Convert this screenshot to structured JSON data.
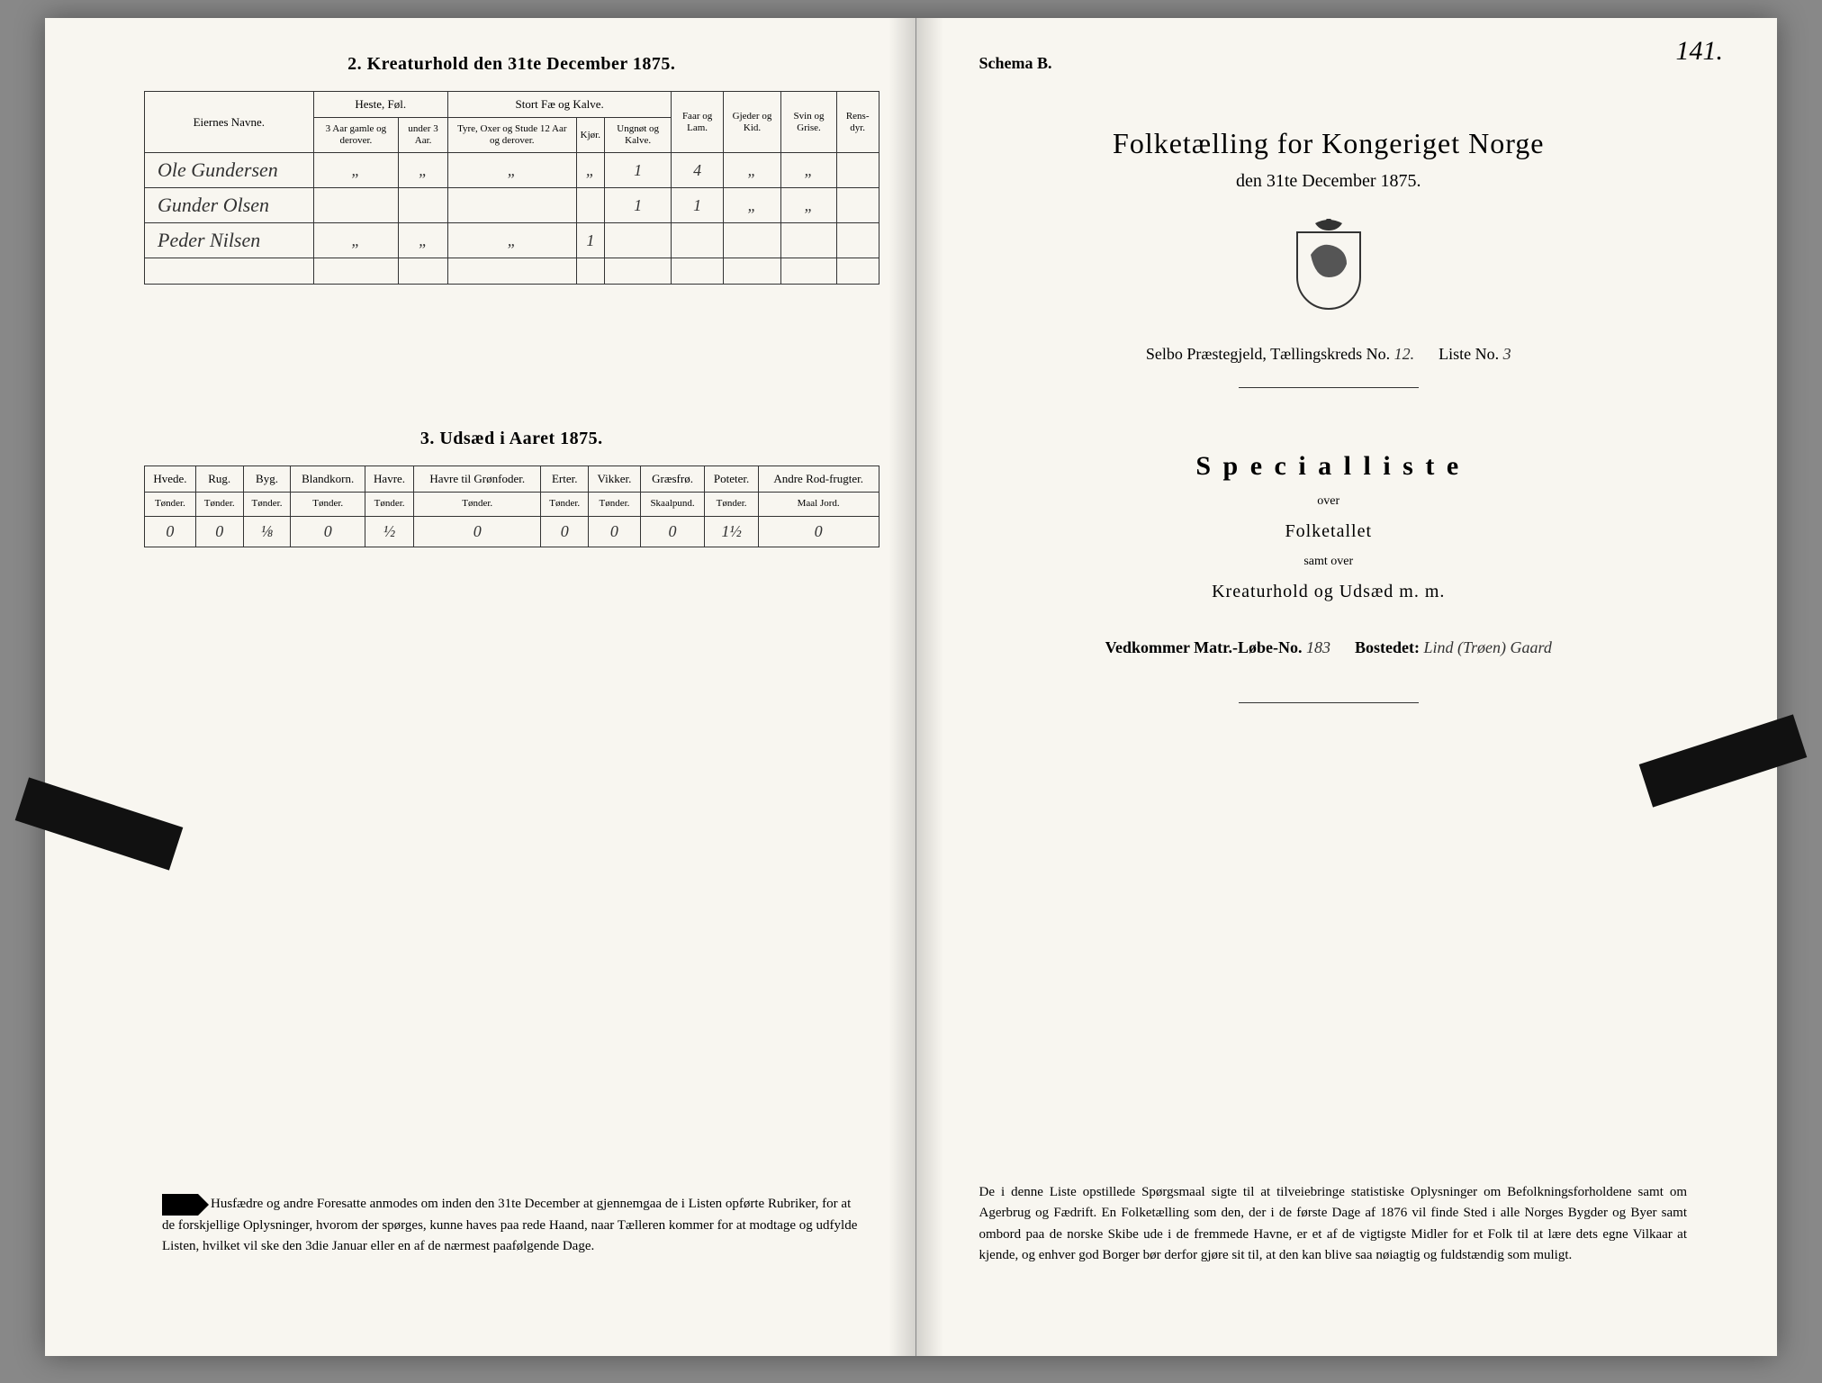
{
  "page_number_handwritten": "141.",
  "left_page": {
    "section2": {
      "title": "2.  Kreaturhold den 31te December 1875.",
      "columns": {
        "owner": "Eiernes Navne.",
        "group_heste": "Heste, Føl.",
        "heste_a": "3 Aar gamle og derover.",
        "heste_b": "under 3 Aar.",
        "group_stort": "Stort Fæ og Kalve.",
        "stort_a": "Tyre, Oxer og Stude 12 Aar og derover.",
        "stort_b": "Kjør.",
        "stort_c": "Ungnøt og Kalve.",
        "faar": "Faar og Lam.",
        "gjeder": "Gjeder og Kid.",
        "svin": "Svin og Grise.",
        "rens": "Rens-dyr."
      },
      "rows": [
        {
          "name": "Ole Gundersen",
          "cells": [
            "„",
            "„",
            "„",
            "„",
            "1",
            "4",
            "„",
            "„",
            ""
          ]
        },
        {
          "name": "Gunder Olsen",
          "cells": [
            "",
            "",
            "",
            "",
            "1",
            "1",
            "„",
            "„",
            ""
          ]
        },
        {
          "name": "Peder Nilsen",
          "cells": [
            "„",
            "„",
            "„",
            "1",
            "",
            "",
            "",
            "",
            ""
          ]
        }
      ]
    },
    "section3": {
      "title": "3.  Udsæd i Aaret 1875.",
      "columns": [
        {
          "h": "Hvede.",
          "u": "Tønder."
        },
        {
          "h": "Rug.",
          "u": "Tønder."
        },
        {
          "h": "Byg.",
          "u": "Tønder."
        },
        {
          "h": "Blandkorn.",
          "u": "Tønder."
        },
        {
          "h": "Havre.",
          "u": "Tønder."
        },
        {
          "h": "Havre til Grønfoder.",
          "u": "Tønder."
        },
        {
          "h": "Erter.",
          "u": "Tønder."
        },
        {
          "h": "Vikker.",
          "u": "Tønder."
        },
        {
          "h": "Græsfrø.",
          "u": "Skaalpund."
        },
        {
          "h": "Poteter.",
          "u": "Tønder."
        },
        {
          "h": "Andre Rod-frugter.",
          "u": "Maal Jord."
        }
      ],
      "values": [
        "0",
        "0",
        "⅛",
        "0",
        "½",
        "0",
        "0",
        "0",
        "0",
        "1½",
        "0"
      ]
    },
    "footnote": "Husfædre og andre Foresatte anmodes om inden den 31te December at gjennemgaa de i Listen opførte Rubriker, for at de forskjellige Oplysninger, hvorom der spørges, kunne haves paa rede Haand, naar Tælleren kommer for at modtage og udfylde Listen, hvilket vil ske den 3die Januar eller en af de nærmest paafølgende Dage."
  },
  "right_page": {
    "schema": "Schema B.",
    "main_title": "Folketælling for Kongeriget Norge",
    "date_line": "den 31te December 1875.",
    "district_line_prefix": "Selbo Præstegjeld,  Tællingskreds No.",
    "district_no": "12.",
    "liste_prefix": "Liste No.",
    "liste_no": "3",
    "spec_title": "S p e c i a l l i s t e",
    "over": "over",
    "folketallet": "Folketallet",
    "samt_over": "samt over",
    "kreatur": "Kreaturhold og Udsæd m. m.",
    "vedkommer": "Vedkommer Matr.-Løbe-No.",
    "matr_no": "183",
    "bostedet_label": "Bostedet:",
    "bostedet_value": "Lind (Trøen) Gaard",
    "footnote": "De i denne Liste opstillede Spørgsmaal sigte til at tilveiebringe statistiske Oplysninger om Befolkningsforholdene samt om Agerbrug og Fædrift.  En Folketælling som den, der i de første Dage af 1876 vil finde Sted i alle Norges Bygder og Byer samt ombord paa de norske Skibe ude i de fremmede Havne, er et af de vigtigste Midler for et Folk til at lære dets egne Vilkaar at kjende, og enhver god Borger bør derfor gjøre sit til, at den kan blive saa nøiagtig og fuldstændig som muligt."
  },
  "colors": {
    "paper": "#f8f6f0",
    "ink": "#222222",
    "border": "#333333"
  }
}
